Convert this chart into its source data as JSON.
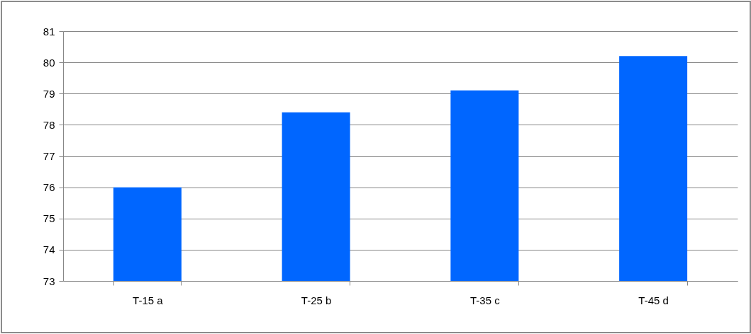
{
  "chart_data": {
    "type": "bar",
    "categories": [
      "T-15 a",
      "T-25 b",
      "T-35 c",
      "T-45 d"
    ],
    "values": [
      76.0,
      78.4,
      79.1,
      80.2
    ],
    "color": "#0066ff",
    "ylim": [
      73,
      81
    ],
    "yticks": [
      73,
      74,
      75,
      76,
      77,
      78,
      79,
      80,
      81
    ],
    "grid": "y"
  }
}
